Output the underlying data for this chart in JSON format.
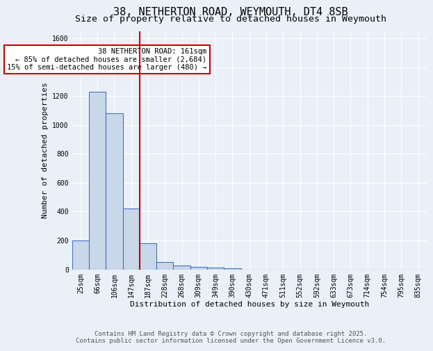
{
  "title": "38, NETHERTON ROAD, WEYMOUTH, DT4 8SB",
  "subtitle": "Size of property relative to detached houses in Weymouth",
  "xlabel": "Distribution of detached houses by size in Weymouth",
  "ylabel": "Number of detached properties",
  "categories": [
    "25sqm",
    "66sqm",
    "106sqm",
    "147sqm",
    "187sqm",
    "228sqm",
    "268sqm",
    "309sqm",
    "349sqm",
    "390sqm",
    "430sqm",
    "471sqm",
    "511sqm",
    "552sqm",
    "592sqm",
    "633sqm",
    "673sqm",
    "714sqm",
    "754sqm",
    "795sqm",
    "835sqm"
  ],
  "values": [
    200,
    1230,
    1080,
    420,
    180,
    50,
    25,
    15,
    10,
    8,
    0,
    0,
    0,
    0,
    0,
    0,
    0,
    0,
    0,
    0,
    0
  ],
  "bar_color": "#c8d8e8",
  "bar_edge_color": "#4472c4",
  "red_line_x": 3.5,
  "annotation_text": "38 NETHERTON ROAD: 161sqm\n← 85% of detached houses are smaller (2,684)\n15% of semi-detached houses are larger (480) →",
  "annotation_box_color": "#ffffff",
  "annotation_box_edge_color": "#cc0000",
  "ylim": [
    0,
    1650
  ],
  "yticks": [
    0,
    200,
    400,
    600,
    800,
    1000,
    1200,
    1400,
    1600
  ],
  "background_color": "#eaf0f8",
  "grid_color": "#ffffff",
  "footer_line1": "Contains HM Land Registry data © Crown copyright and database right 2025.",
  "footer_line2": "Contains public sector information licensed under the Open Government Licence v3.0.",
  "title_fontsize": 11,
  "subtitle_fontsize": 9.5,
  "axis_label_fontsize": 8,
  "tick_fontsize": 7,
  "annotation_fontsize": 7.5,
  "footer_fontsize": 6.5
}
